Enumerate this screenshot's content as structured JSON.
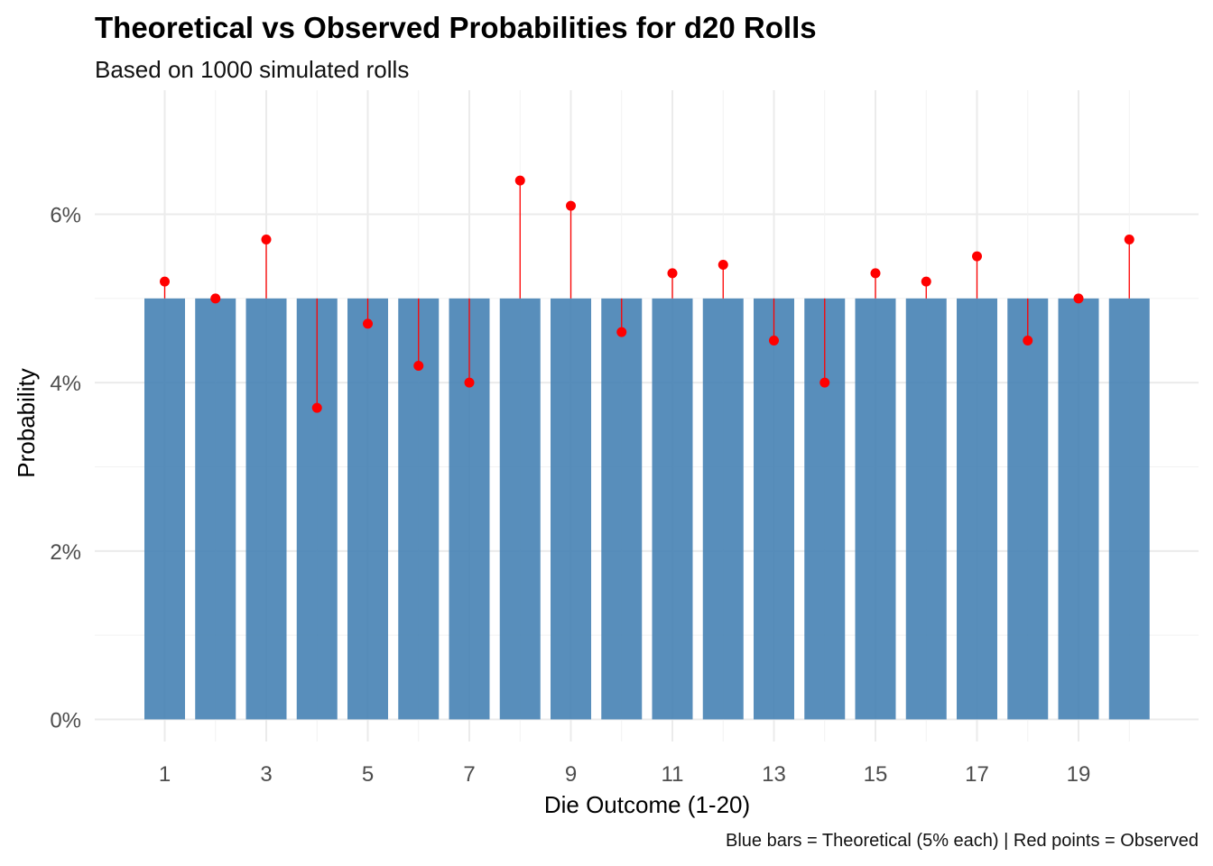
{
  "chart_data": {
    "type": "bar",
    "title": "Theoretical vs Observed Probabilities for d20 Rolls",
    "subtitle": "Based on 1000 simulated rolls",
    "caption": "Blue bars = Theoretical (5% each) | Red points = Observed",
    "xlabel": "Die Outcome (1-20)",
    "ylabel": "Probability",
    "categories": [
      1,
      2,
      3,
      4,
      5,
      6,
      7,
      8,
      9,
      10,
      11,
      12,
      13,
      14,
      15,
      16,
      17,
      18,
      19,
      20
    ],
    "x_tick_labels": [
      "1",
      "3",
      "5",
      "7",
      "9",
      "11",
      "13",
      "15",
      "17",
      "19"
    ],
    "y_ticks": [
      0,
      0.02,
      0.04,
      0.06
    ],
    "y_tick_labels": [
      "0%",
      "2%",
      "4%",
      "6%"
    ],
    "ylim": [
      0,
      0.07
    ],
    "grid": true,
    "series": [
      {
        "type": "bar",
        "color": "#4682B4",
        "values": [
          0.05,
          0.05,
          0.05,
          0.05,
          0.05,
          0.05,
          0.05,
          0.05,
          0.05,
          0.05,
          0.05,
          0.05,
          0.05,
          0.05,
          0.05,
          0.05,
          0.05,
          0.05,
          0.05,
          0.05
        ]
      },
      {
        "type": "lollipop",
        "color": "#FF0000",
        "values": [
          0.052,
          0.05,
          0.057,
          0.037,
          0.047,
          0.042,
          0.04,
          0.064,
          0.061,
          0.046,
          0.053,
          0.054,
          0.045,
          0.04,
          0.053,
          0.052,
          0.055,
          0.045,
          0.05,
          0.057
        ]
      }
    ]
  }
}
